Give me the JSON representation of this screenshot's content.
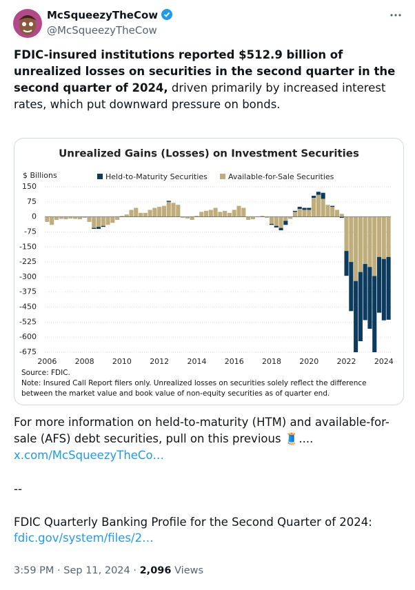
{
  "author": {
    "name": "McSqueezyTheCow",
    "handle": "@McSqueezyTheCow"
  },
  "tweet": {
    "bold_text": "FDIC-insured institutions reported $512.9 billion of unrealized losses on securities in the second quarter in the second quarter of 2024,",
    "text": "driven primarily by increased interest rates, which put downward pressure on bonds.",
    "more_text": "For more information on held-to-maturity (HTM) and available-for-sale (AFS) debt securities, pull on this previous 🧵....",
    "link1": "x.com/McSqueezyTheCo…",
    "separator": "--",
    "profile_text": "FDIC Quarterly Banking Profile for the Second Quarter of 2024:",
    "link2": "fdic.gov/system/files/2…"
  },
  "meta": {
    "time": "3:59 PM · Sep 11, 2024 ·",
    "views": "2,096",
    "views_label": "Views"
  },
  "chart_data": {
    "type": "bar",
    "stacked": true,
    "title": "Unrealized Gains (Losses) on Investment Securities",
    "y_label": "$ Billions",
    "categories": [
      "2006",
      null,
      null,
      null,
      null,
      null,
      null,
      null,
      "2008",
      null,
      null,
      null,
      null,
      null,
      null,
      null,
      "2010",
      null,
      null,
      null,
      null,
      null,
      null,
      null,
      "2012",
      null,
      null,
      null,
      null,
      null,
      null,
      null,
      "2014",
      null,
      null,
      null,
      null,
      null,
      null,
      null,
      "2016",
      null,
      null,
      null,
      null,
      null,
      null,
      null,
      "2018",
      null,
      null,
      null,
      null,
      null,
      null,
      null,
      "2020",
      null,
      null,
      null,
      null,
      null,
      null,
      null,
      "2022",
      null,
      null,
      null,
      null,
      null,
      null,
      null,
      "2024",
      null
    ],
    "series": [
      {
        "name": "Held-to-Maturity Securities",
        "color": "#0d3b5e",
        "values": [
          0,
          0,
          0,
          0,
          0,
          0,
          0,
          0,
          0,
          0,
          -5,
          -10,
          -5,
          0,
          0,
          0,
          0,
          0,
          0,
          0,
          0,
          0,
          0,
          0,
          0,
          0,
          5,
          0,
          0,
          0,
          0,
          0,
          0,
          0,
          0,
          0,
          0,
          0,
          0,
          0,
          0,
          0,
          0,
          0,
          0,
          0,
          0,
          0,
          -5,
          -8,
          -12,
          -20,
          0,
          5,
          10,
          10,
          10,
          10,
          15,
          30,
          0,
          5,
          0,
          -5,
          -124,
          -245,
          -370,
          -345,
          -280,
          -308,
          -389,
          -278,
          -306,
          -313
        ]
      },
      {
        "name": "Available-for-Sale Securities",
        "color": "#bfae7c",
        "values": [
          -25,
          -40,
          -15,
          -10,
          -12,
          -8,
          -10,
          -12,
          -5,
          -25,
          -55,
          -50,
          -45,
          -40,
          -30,
          -15,
          5,
          12,
          35,
          45,
          20,
          20,
          35,
          45,
          50,
          55,
          75,
          70,
          60,
          -5,
          -8,
          -15,
          5,
          25,
          30,
          35,
          45,
          25,
          30,
          20,
          35,
          55,
          45,
          -15,
          -12,
          2,
          5,
          -5,
          -35,
          -45,
          -55,
          -20,
          -10,
          25,
          40,
          35,
          35,
          95,
          110,
          90,
          60,
          50,
          35,
          15,
          -170,
          -225,
          -320,
          -275,
          -235,
          -250,
          -295,
          -200,
          -210,
          -200
        ]
      }
    ],
    "ylim": [
      -675,
      150
    ],
    "yticks": [
      150,
      75,
      0,
      -75,
      -150,
      -225,
      -300,
      -375,
      -450,
      -525,
      -600,
      -675
    ],
    "source": "Source: FDIC.",
    "note": "Note: Insured Call Report filers only. Unrealized losses on securities solely reflect the difference between the market value and book value of non-equity securities as of quarter end."
  }
}
